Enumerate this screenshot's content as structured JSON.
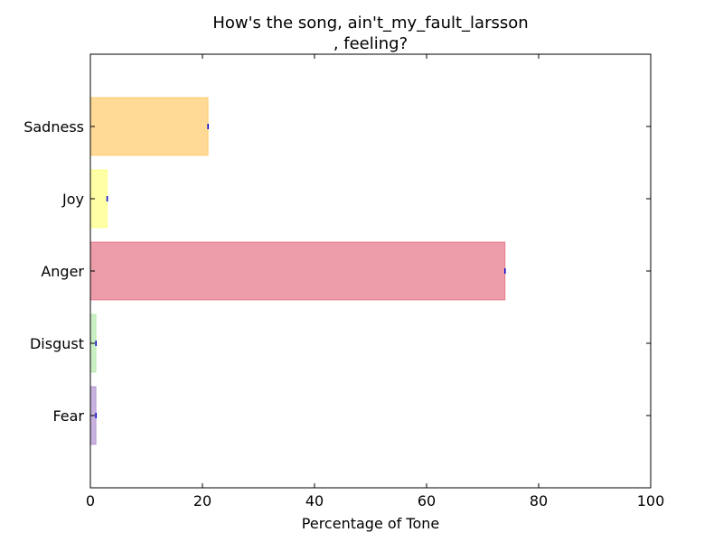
{
  "chart_data": {
    "type": "bar",
    "orientation": "horizontal",
    "title_lines": [
      "How's the song, ain't_my_fault_larsson",
      ", feeling?"
    ],
    "xlabel": "Percentage of Tone",
    "ylabel": "",
    "xlim": [
      0,
      100
    ],
    "xticks": [
      "0",
      "20",
      "40",
      "60",
      "80",
      "100"
    ],
    "categories": [
      "Fear",
      "Disgust",
      "Anger",
      "Joy",
      "Sadness"
    ],
    "values": [
      1,
      1,
      74,
      3,
      21
    ],
    "colors": [
      "#9467bd",
      "#98df8a",
      "#dc3c55",
      "#ffff4d",
      "#ffb62e"
    ],
    "bar_alpha": 0.5,
    "grid": false,
    "legend": "none"
  }
}
